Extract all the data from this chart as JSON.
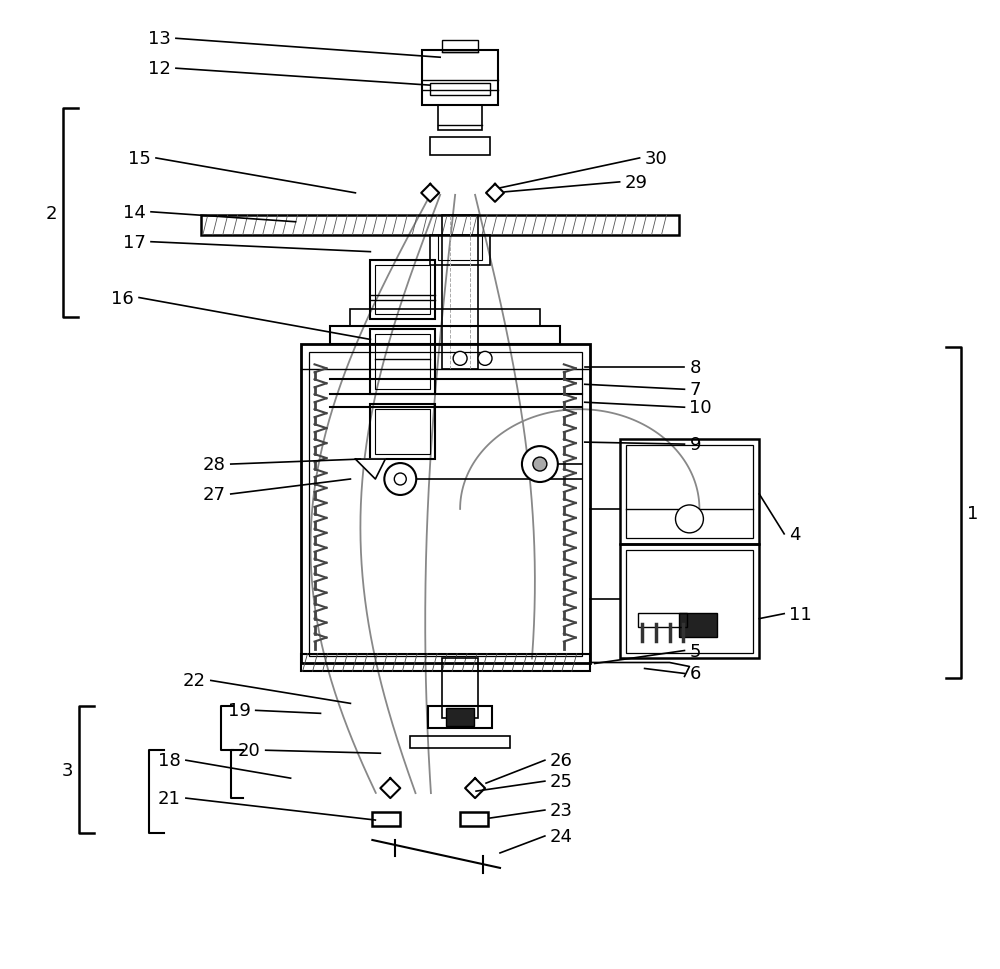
{
  "bg_color": "#ffffff",
  "line_color": "#000000",
  "label_fontsize": 13
}
